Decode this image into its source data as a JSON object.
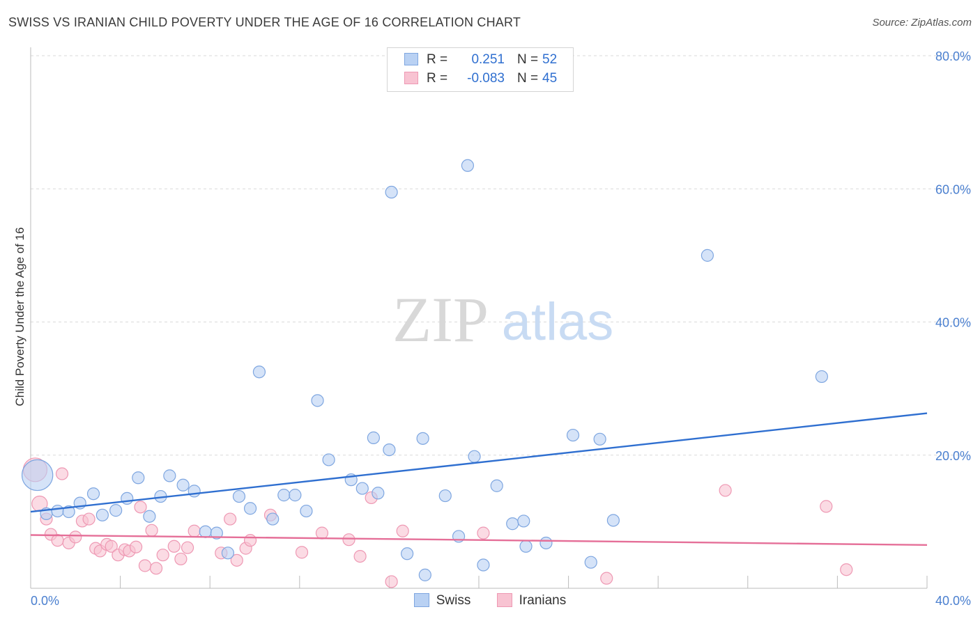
{
  "header": {
    "title": "SWISS VS IRANIAN CHILD POVERTY UNDER THE AGE OF 16 CORRELATION CHART",
    "source": "Source: ZipAtlas.com"
  },
  "legend": {
    "rows": [
      {
        "r_label": "R =",
        "r_value": "0.251",
        "n_label": "N =",
        "n_value": "52"
      },
      {
        "r_label": "R =",
        "r_value": "-0.083",
        "n_label": "N =",
        "n_value": "45"
      }
    ]
  },
  "watermark": {
    "zip": "ZIP",
    "atlas": "atlas"
  },
  "colors": {
    "swiss_fill": "#b9d1f3",
    "swiss_stroke": "#7ea6e0",
    "swiss_line": "#2f6fd0",
    "iranian_fill": "#f8c3d2",
    "iranian_stroke": "#ee98b3",
    "iranian_line": "#e56f98",
    "grid": "#d9d9d9",
    "tick_text": "#4a7fcf"
  },
  "chart_data": {
    "type": "scatter",
    "title": "SWISS VS IRANIAN CHILD POVERTY UNDER THE AGE OF 16 CORRELATION CHART",
    "xlabel": "",
    "ylabel": "Child Poverty Under the Age of 16",
    "xlim": [
      0,
      40
    ],
    "ylim": [
      0,
      80
    ],
    "x_tick_labels": [
      "0.0%",
      "40.0%"
    ],
    "y_ticks": [
      20,
      40,
      60,
      80
    ],
    "y_tick_labels": [
      "20.0%",
      "40.0%",
      "60.0%",
      "80.0%"
    ],
    "grid": true,
    "legend_position": "bottom-center",
    "series": [
      {
        "name": "Swiss",
        "trend": {
          "x": [
            0,
            40
          ],
          "y": [
            11.5,
            26.3
          ]
        },
        "points": [
          [
            0.3,
            17.0,
            2.6
          ],
          [
            0.7,
            11.2,
            1
          ],
          [
            1.2,
            11.6,
            1
          ],
          [
            1.7,
            11.5,
            1
          ],
          [
            2.2,
            12.8,
            1
          ],
          [
            2.8,
            14.2,
            1
          ],
          [
            3.2,
            11.0,
            1
          ],
          [
            3.8,
            11.7,
            1
          ],
          [
            4.3,
            13.5,
            1
          ],
          [
            4.8,
            16.6,
            1
          ],
          [
            5.3,
            10.8,
            1
          ],
          [
            5.8,
            13.8,
            1
          ],
          [
            6.2,
            16.9,
            1
          ],
          [
            6.8,
            15.5,
            1
          ],
          [
            7.3,
            14.6,
            1
          ],
          [
            7.8,
            8.5,
            1
          ],
          [
            8.3,
            8.3,
            1
          ],
          [
            8.8,
            5.3,
            1
          ],
          [
            9.3,
            13.8,
            1
          ],
          [
            9.8,
            12.0,
            1
          ],
          [
            10.2,
            32.5,
            1
          ],
          [
            10.8,
            10.4,
            1
          ],
          [
            11.3,
            14.0,
            1
          ],
          [
            11.8,
            14.0,
            1
          ],
          [
            12.3,
            11.6,
            1
          ],
          [
            12.8,
            28.2,
            1
          ],
          [
            13.3,
            19.3,
            1
          ],
          [
            14.3,
            16.3,
            1
          ],
          [
            14.8,
            15.0,
            1
          ],
          [
            15.3,
            22.6,
            1
          ],
          [
            16.0,
            20.8,
            1
          ],
          [
            15.5,
            14.3,
            1
          ],
          [
            16.1,
            59.5,
            1
          ],
          [
            16.8,
            5.2,
            1
          ],
          [
            17.5,
            22.5,
            1
          ],
          [
            17.6,
            2.0,
            1
          ],
          [
            18.5,
            13.9,
            1
          ],
          [
            19.1,
            7.8,
            1
          ],
          [
            19.5,
            63.5,
            1
          ],
          [
            19.8,
            19.8,
            1
          ],
          [
            20.2,
            3.5,
            1
          ],
          [
            20.8,
            15.4,
            1
          ],
          [
            21.5,
            9.7,
            1
          ],
          [
            22.0,
            10.1,
            1
          ],
          [
            22.1,
            6.3,
            1
          ],
          [
            23.0,
            6.8,
            1
          ],
          [
            24.2,
            23.0,
            1
          ],
          [
            25.0,
            3.9,
            1
          ],
          [
            25.4,
            22.4,
            1
          ],
          [
            26.0,
            10.2,
            1
          ],
          [
            30.2,
            50.0,
            1
          ],
          [
            35.3,
            31.8,
            1
          ]
        ]
      },
      {
        "name": "Iranians",
        "trend": {
          "x": [
            0,
            40
          ],
          "y": [
            8.0,
            6.5
          ]
        },
        "points": [
          [
            0.2,
            17.8,
            2.0
          ],
          [
            0.4,
            12.7,
            1.3
          ],
          [
            0.7,
            10.4,
            1
          ],
          [
            0.9,
            8.1,
            1
          ],
          [
            1.2,
            7.2,
            1
          ],
          [
            1.4,
            17.2,
            1
          ],
          [
            1.7,
            6.8,
            1
          ],
          [
            2.0,
            7.7,
            1
          ],
          [
            2.3,
            10.1,
            1
          ],
          [
            2.6,
            10.4,
            1
          ],
          [
            2.9,
            6.0,
            1
          ],
          [
            3.1,
            5.6,
            1
          ],
          [
            3.4,
            6.6,
            1
          ],
          [
            3.6,
            6.3,
            1
          ],
          [
            3.9,
            5.0,
            1
          ],
          [
            4.2,
            5.8,
            1
          ],
          [
            4.4,
            5.6,
            1
          ],
          [
            4.7,
            6.2,
            1
          ],
          [
            4.9,
            12.2,
            1
          ],
          [
            5.1,
            3.4,
            1
          ],
          [
            5.4,
            8.7,
            1
          ],
          [
            5.6,
            3.0,
            1
          ],
          [
            5.9,
            5.0,
            1
          ],
          [
            6.4,
            6.3,
            1
          ],
          [
            6.7,
            4.4,
            1
          ],
          [
            7.0,
            6.1,
            1
          ],
          [
            7.3,
            8.6,
            1
          ],
          [
            8.5,
            5.3,
            1
          ],
          [
            8.9,
            10.4,
            1
          ],
          [
            9.2,
            4.2,
            1
          ],
          [
            9.6,
            6.0,
            1
          ],
          [
            9.8,
            7.2,
            1
          ],
          [
            10.7,
            11.0,
            1
          ],
          [
            12.1,
            5.4,
            1
          ],
          [
            13.0,
            8.3,
            1
          ],
          [
            14.2,
            7.3,
            1
          ],
          [
            14.7,
            4.8,
            1
          ],
          [
            15.2,
            13.6,
            1
          ],
          [
            16.1,
            1.0,
            1
          ],
          [
            16.6,
            8.6,
            1
          ],
          [
            20.2,
            8.3,
            1
          ],
          [
            25.7,
            1.5,
            1
          ],
          [
            31.0,
            14.7,
            1
          ],
          [
            35.5,
            12.3,
            1
          ],
          [
            36.4,
            2.8,
            1
          ]
        ]
      }
    ]
  },
  "bottom_legend": {
    "swiss": "Swiss",
    "iranians": "Iranians"
  }
}
